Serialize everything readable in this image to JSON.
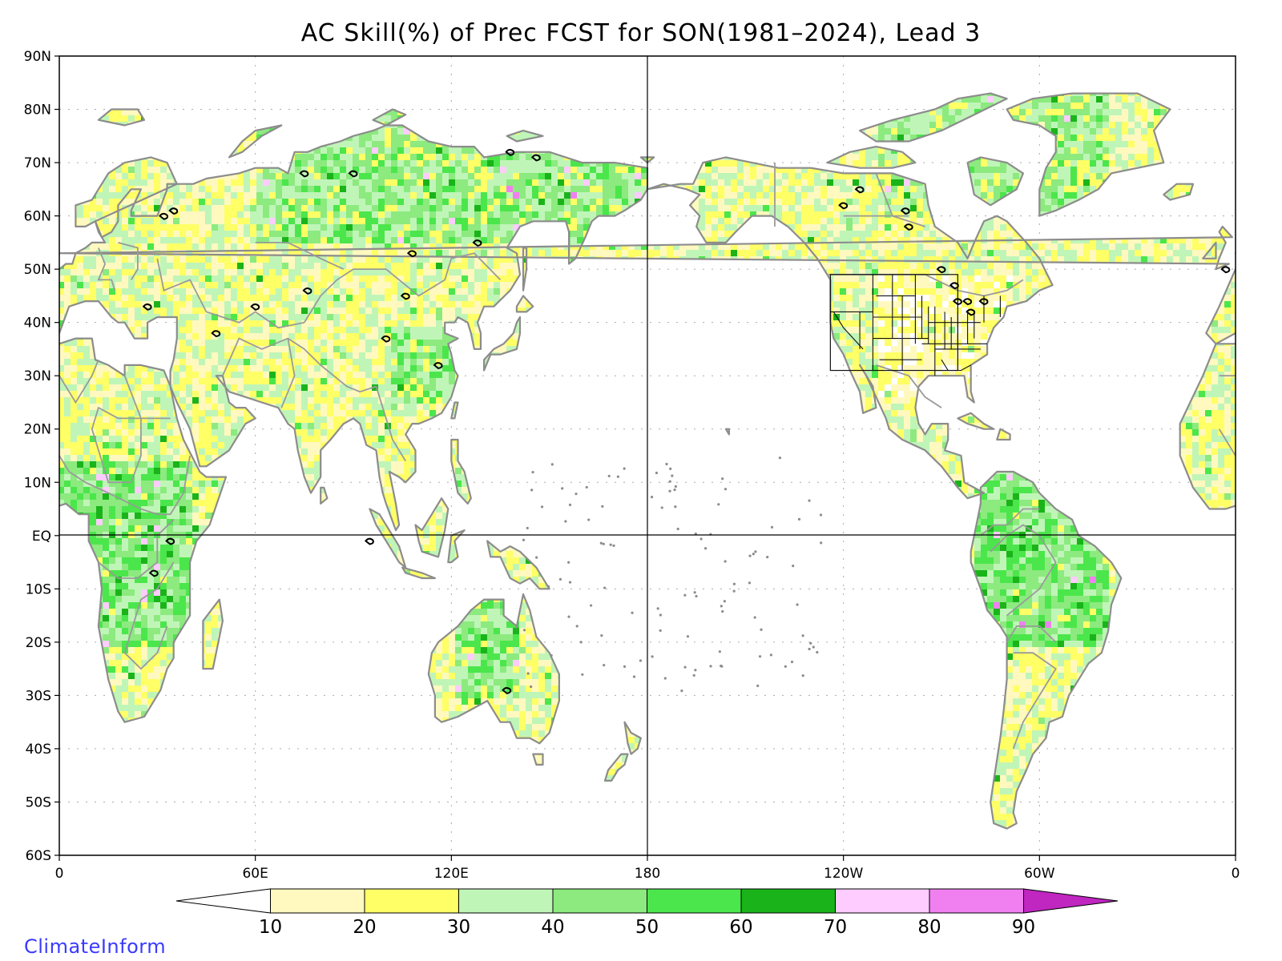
{
  "title": "AC Skill(%) of Prec FCST for SON(1981–2024), Lead 3",
  "brand": "ClimateInform",
  "lat_labels": [
    "90N",
    "80N",
    "70N",
    "60N",
    "50N",
    "40N",
    "30N",
    "20N",
    "10N",
    "EQ",
    "10S",
    "20S",
    "30S",
    "40S",
    "50S",
    "60S"
  ],
  "lon_labels": [
    "0",
    "60E",
    "120E",
    "180",
    "120W",
    "60W",
    "0"
  ],
  "colorbar": {
    "ticks": [
      "10",
      "20",
      "30",
      "40",
      "50",
      "60",
      "70",
      "80",
      "90"
    ],
    "bins": [
      {
        "range": "<10",
        "color": "#ffffff"
      },
      {
        "range": "10-20",
        "color": "#fff9bf"
      },
      {
        "range": "20-30",
        "color": "#ffff66"
      },
      {
        "range": "30-40",
        "color": "#c0f5b8"
      },
      {
        "range": "40-50",
        "color": "#8cea7f"
      },
      {
        "range": "50-60",
        "color": "#4be64b"
      },
      {
        "range": "60-70",
        "color": "#1ab41a"
      },
      {
        "range": "70-80",
        "color": "#ffccff"
      },
      {
        "range": "80-90",
        "color": "#f080f0"
      },
      {
        "range": ">90",
        "color": "#c026c0"
      }
    ]
  },
  "colors": {
    "coast": "#8c8c8c",
    "border": "#9a9a9a",
    "lakes": "#000000",
    "axis": "#000000",
    "brand": "#3a3aff"
  }
}
